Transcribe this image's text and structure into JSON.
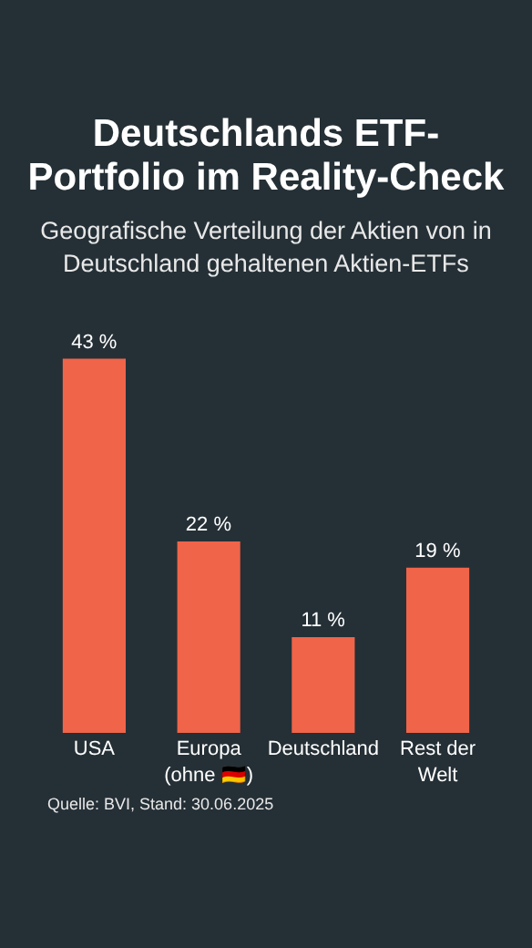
{
  "chart_data": {
    "type": "bar",
    "title": "Deutschlands ETF-Portfolio im Reality-Check",
    "subtitle": "Geografische Verteilung der Aktien von in Deutschland gehaltenen Aktien-ETFs",
    "categories": [
      "USA",
      "Europa (ohne 🇩🇪)",
      "Deutschland",
      "Rest der Welt"
    ],
    "values": [
      43,
      22,
      11,
      19
    ],
    "color": "#f0644a",
    "value_labels": [
      "43 %",
      "22 %",
      "11 %",
      "19 %"
    ],
    "annotations": [
      "Quelle: BVI, Stand: 30.06.2025"
    ],
    "grid": false,
    "legend": false
  }
}
